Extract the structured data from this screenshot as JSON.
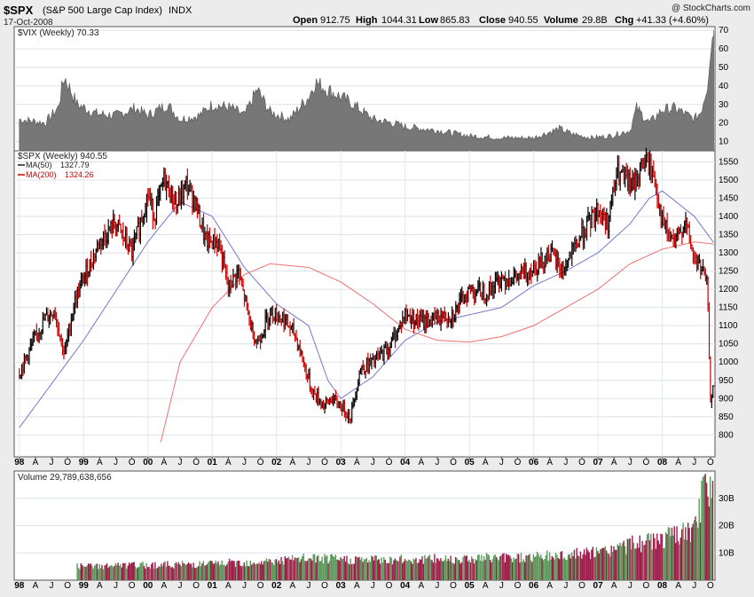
{
  "header": {
    "symbol": "$SPX",
    "name": "(S&P 500 Large Cap Index)",
    "exchange": "INDX",
    "date": "17-Oct-2008",
    "open_label": "Open",
    "open": "912.75",
    "high_label": "High",
    "high": "1044.31",
    "low_label": "Low",
    "low": "865.83",
    "close_label": "Close",
    "close": "940.55",
    "volume_label": "Volume",
    "volume": "29.8B",
    "chg_label": "Chg",
    "chg": "+41.33 (+4.60%)",
    "watermark": "@ StockCharts.com"
  },
  "chart_data": [
    {
      "type": "area",
      "panel": "vix",
      "title": "$VIX (Weekly) 70.33",
      "ylim": [
        5,
        72
      ],
      "yticks": [
        10,
        20,
        30,
        40,
        50,
        60,
        70
      ],
      "x_year_start": 1998.0,
      "x_year_end": 2008.8,
      "series": [
        {
          "name": "$VIX",
          "x": [
            1998.0,
            1998.4,
            1998.6,
            1998.7,
            1998.9,
            1999.2,
            1999.5,
            1999.8,
            2000.0,
            2000.3,
            2000.5,
            2000.8,
            2001.0,
            2001.3,
            2001.5,
            2001.7,
            2001.9,
            2002.2,
            2002.5,
            2002.6,
            2002.8,
            2003.0,
            2003.2,
            2003.5,
            2003.8,
            2004.0,
            2004.5,
            2005.0,
            2005.5,
            2006.0,
            2006.4,
            2006.6,
            2006.9,
            2007.2,
            2007.5,
            2007.6,
            2007.8,
            2008.0,
            2008.2,
            2008.5,
            2008.6,
            2008.7,
            2008.75,
            2008.8
          ],
          "values": [
            22,
            20,
            28,
            45,
            30,
            25,
            24,
            28,
            24,
            30,
            22,
            24,
            30,
            28,
            24,
            38,
            26,
            22,
            34,
            42,
            38,
            34,
            30,
            22,
            20,
            18,
            16,
            13,
            12,
            12,
            17,
            14,
            12,
            13,
            16,
            28,
            20,
            27,
            28,
            22,
            26,
            40,
            60,
            70
          ]
        }
      ]
    },
    {
      "type": "line",
      "panel": "price",
      "title": "$SPX (Weekly) 940.55",
      "legend": [
        {
          "name": "MA(50)",
          "value": "1327.79",
          "color": "#6666cc"
        },
        {
          "name": "MA(200)",
          "value": "1324.26",
          "color": "#e86868"
        }
      ],
      "ylim": [
        740,
        1580
      ],
      "yticks": [
        800,
        850,
        900,
        950,
        1000,
        1050,
        1100,
        1150,
        1200,
        1250,
        1300,
        1350,
        1400,
        1450,
        1500,
        1550
      ],
      "x_year_start": 1998.0,
      "x_year_end": 2008.8,
      "series": [
        {
          "name": "$SPX",
          "x": [
            1998.0,
            1998.2,
            1998.4,
            1998.55,
            1998.7,
            1998.85,
            1999.0,
            1999.25,
            1999.5,
            1999.75,
            2000.0,
            2000.1,
            2000.25,
            2000.45,
            2000.6,
            2000.75,
            2000.9,
            2001.1,
            2001.25,
            2001.4,
            2001.6,
            2001.7,
            2001.9,
            2002.1,
            2002.3,
            2002.45,
            2002.55,
            2002.75,
            2002.85,
            2003.0,
            2003.15,
            2003.3,
            2003.5,
            2003.75,
            2004.0,
            2004.25,
            2004.5,
            2004.75,
            2005.0,
            2005.25,
            2005.5,
            2005.75,
            2006.0,
            2006.25,
            2006.45,
            2006.75,
            2007.0,
            2007.15,
            2007.3,
            2007.55,
            2007.7,
            2007.8,
            2007.9,
            2008.0,
            2008.2,
            2008.35,
            2008.5,
            2008.6,
            2008.7,
            2008.75,
            2008.8
          ],
          "values": [
            970,
            1050,
            1120,
            1140,
            1020,
            1160,
            1230,
            1330,
            1380,
            1300,
            1460,
            1400,
            1500,
            1430,
            1490,
            1430,
            1330,
            1330,
            1200,
            1250,
            1100,
            1050,
            1140,
            1120,
            1070,
            980,
            920,
            880,
            900,
            880,
            850,
            980,
            1000,
            1040,
            1130,
            1110,
            1120,
            1130,
            1200,
            1190,
            1230,
            1230,
            1260,
            1300,
            1250,
            1350,
            1420,
            1380,
            1520,
            1480,
            1550,
            1540,
            1490,
            1380,
            1320,
            1390,
            1280,
            1260,
            1210,
            900,
            940
          ]
        },
        {
          "name": "MA(50)",
          "x": [
            1998.0,
            1999.0,
            2000.0,
            2000.5,
            2001.0,
            2001.5,
            2002.0,
            2002.5,
            2002.8,
            2003.0,
            2003.5,
            2004.0,
            2004.5,
            2005.0,
            2005.5,
            2006.0,
            2006.5,
            2007.0,
            2007.5,
            2007.8,
            2008.0,
            2008.5,
            2008.8
          ],
          "values": [
            820,
            1060,
            1330,
            1440,
            1400,
            1260,
            1160,
            1100,
            950,
            900,
            960,
            1060,
            1110,
            1130,
            1150,
            1210,
            1250,
            1300,
            1380,
            1450,
            1470,
            1400,
            1328
          ]
        },
        {
          "name": "MA(200)",
          "x": [
            2000.2,
            2000.5,
            2001.0,
            2001.5,
            2001.9,
            2002.5,
            2003.0,
            2003.5,
            2004.0,
            2004.5,
            2005.0,
            2005.5,
            2006.0,
            2006.5,
            2007.0,
            2007.5,
            2008.0,
            2008.5,
            2008.8
          ],
          "values": [
            780,
            1000,
            1150,
            1240,
            1270,
            1260,
            1220,
            1160,
            1090,
            1060,
            1055,
            1070,
            1100,
            1150,
            1200,
            1270,
            1310,
            1330,
            1324
          ]
        }
      ]
    },
    {
      "type": "bar",
      "panel": "volume",
      "title": "Volume 29,789,638,656",
      "ylim": [
        0,
        40
      ],
      "yticks": [
        "10B",
        "20B",
        "30B"
      ],
      "x_year_start": 1998.9,
      "x_year_end": 2008.8,
      "series": [
        {
          "name": "Volume (B)",
          "x": [
            1998.9,
            2000.0,
            2001.0,
            2002.0,
            2002.5,
            2003.0,
            2004.0,
            2005.0,
            2006.0,
            2007.0,
            2007.5,
            2008.0,
            2008.5,
            2008.7,
            2008.8
          ],
          "values": [
            5,
            5.5,
            6,
            7,
            8,
            7.5,
            7.5,
            8,
            8.5,
            10,
            13,
            15,
            18,
            38,
            30
          ]
        }
      ]
    }
  ],
  "x_axis": {
    "labels": [
      "98",
      "A",
      "J",
      "O",
      "99",
      "A",
      "J",
      "O",
      "00",
      "A",
      "J",
      "O",
      "01",
      "A",
      "J",
      "O",
      "02",
      "A",
      "J",
      "O",
      "03",
      "A",
      "J",
      "O",
      "04",
      "A",
      "J",
      "O",
      "05",
      "A",
      "J",
      "O",
      "06",
      "A",
      "J",
      "O",
      "07",
      "A",
      "J",
      "O",
      "08",
      "A",
      "J",
      "O"
    ],
    "year_labels": [
      "98",
      "99",
      "00",
      "01",
      "02",
      "03",
      "04",
      "05",
      "06",
      "07",
      "08"
    ]
  },
  "colors": {
    "up": "#000000",
    "down": "#cc0000",
    "ma50": "#7777cc",
    "ma200": "#ee7070",
    "vix_fill": "#777777",
    "vol_up": "#5c9a5c",
    "vol_down": "#a01a4a"
  }
}
